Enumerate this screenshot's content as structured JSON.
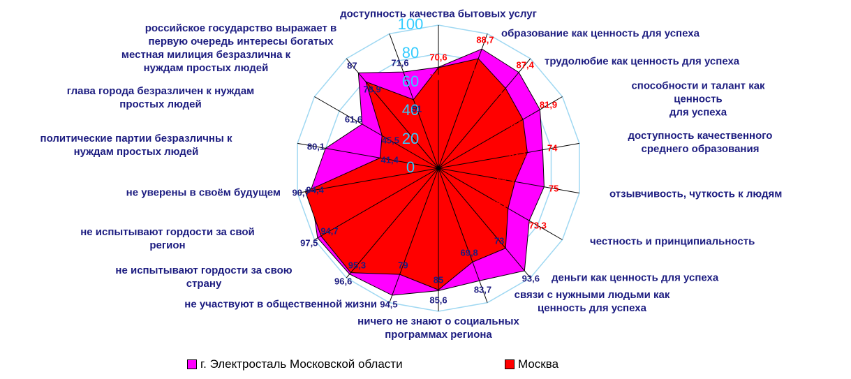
{
  "chart_data": {
    "type": "radar",
    "categories": [
      "доступность качества бытовых услуг",
      "образование как ценность для успеха",
      "трудолюбие как ценность для успеха",
      "способности и талант как ценность\nдля успеха",
      "доступность качественного\nсреднего   образования",
      "отзывчивость, чуткость к людям",
      "честность и принципиальность",
      "деньги как ценность для успеха",
      "связи с нужными людьми как\nценность для успеха",
      "ничего не знают о социальных\nпрограммах региона",
      "не участвуют в общественной жизни",
      "не испытывают гордости за свою\nстрану",
      "не испытывают гордости за свой\nрегион",
      "не уверены в своём будущем",
      "политические партии безразличны к\nнуждам простых людей",
      "глава города безразличен к нуждам\nпростых людей",
      "местная милиция безразлична к\nнуждам простых людей",
      "российское государство выражает в\nпервую очередь интересы богатых"
    ],
    "series": [
      {
        "name": "г. Электросталь Московской области",
        "color": "#ff00ff",
        "values": [
          70.6,
          88.7,
          87.4,
          81.9,
          74,
          75,
          73.3,
          93.6,
          83.7,
          85.6,
          94.5,
          96.6,
          97.5,
          90.7,
          80.1,
          61.6,
          87,
          71.6
        ],
        "value_labels": [
          "70,6",
          "88,7",
          "87,4",
          "81,9",
          "74",
          "75",
          "73,3",
          "93,6",
          "83,7",
          "85,6",
          "94,5",
          "96,6",
          "97,5",
          "90,7",
          "80,1",
          "61,6",
          "87",
          "71,6"
        ]
      },
      {
        "name": "Москва",
        "color": "#ff0000",
        "values": [
          70.3,
          81.5,
          73,
          68.2,
          63.1,
          54.3,
          56.2,
          73,
          69.8,
          85,
          79,
          95.3,
          94.7,
          94.4,
          41.4,
          45.5,
          78.9,
          51
        ],
        "value_labels": [
          "70,3",
          "81,5",
          "73",
          "68,2",
          "63,1",
          "54,3",
          "56,2",
          "73",
          "69,8",
          "85",
          "79",
          "95,3",
          "94,7",
          "94,4",
          "41,4",
          "45,5",
          "78,9",
          "51"
        ]
      }
    ],
    "ylim": [
      0,
      100
    ],
    "yticks": [
      0,
      20,
      40,
      60,
      80,
      100
    ],
    "grid": true,
    "legend": "bottom"
  }
}
